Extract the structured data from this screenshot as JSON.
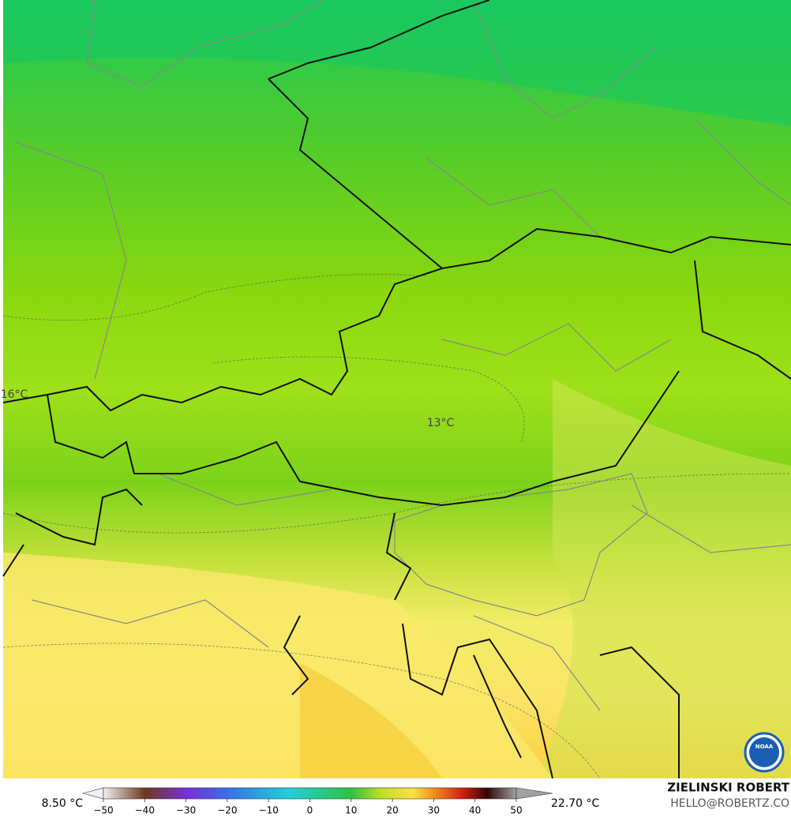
{
  "map": {
    "labels": [
      {
        "text": "16°C"
      },
      {
        "text": "13°C"
      }
    ]
  },
  "colorbar": {
    "min_label": "8.50 °C",
    "max_label": "22.70 °C",
    "ticks": [
      {
        "value": -50,
        "label": "−50"
      },
      {
        "value": -40,
        "label": "−40"
      },
      {
        "value": -30,
        "label": "−30"
      },
      {
        "value": -20,
        "label": "−20"
      },
      {
        "value": -10,
        "label": "−10"
      },
      0,
      10,
      20,
      30,
      40,
      50
    ]
  },
  "credit": {
    "author": "ZIELINSKI ROBERT",
    "contact": "HELLO@ROBERTZ.CO",
    "logo": "NOAA"
  }
}
